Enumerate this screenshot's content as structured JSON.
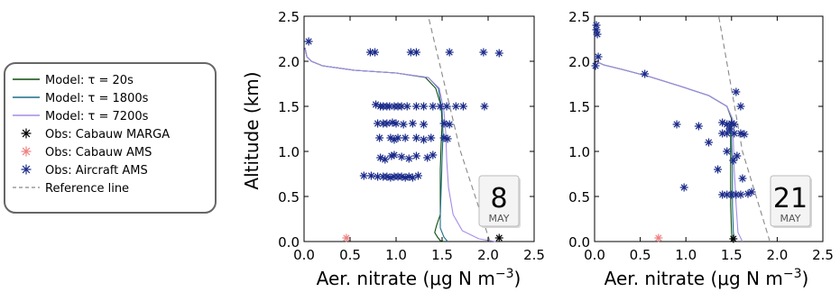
{
  "legend": {
    "entries": [
      {
        "label": "Model: τ  = 20s",
        "color": "#0b4d0b",
        "kind": "line"
      },
      {
        "label": "Model: τ  = 1800s",
        "color": "#1f6e86",
        "kind": "line"
      },
      {
        "label": "Model: τ  = 7200s",
        "color": "#a58be6",
        "kind": "line"
      },
      {
        "label": "Obs: Cabauw MARGA",
        "color": "#000000",
        "kind": "star"
      },
      {
        "label": "Obs: Cabauw AMS",
        "color": "#f08080",
        "kind": "star"
      },
      {
        "label": "Obs: Aircraft AMS",
        "color": "#1a2a8a",
        "kind": "star"
      },
      {
        "label": "Reference line",
        "color": "#888888",
        "kind": "dash"
      }
    ]
  },
  "chart_data": [
    {
      "type": "line",
      "xlabel": "Aer. nitrate (μg N m⁻³)",
      "ylabel": "Altitude (km)",
      "xlim": [
        0.0,
        2.5
      ],
      "ylim": [
        0.0,
        2.5
      ],
      "xticks": [
        "0.0",
        "0.5",
        "1.0",
        "1.5",
        "2.0",
        "2.5"
      ],
      "yticks": [
        "0.0",
        "0.5",
        "1.0",
        "1.5",
        "2.0",
        "2.5"
      ],
      "calendar": {
        "day": "8",
        "month": "MAY"
      },
      "series": [
        {
          "name": "Model: τ  = 20s",
          "color": "#0b4d0b",
          "points": [
            [
              1.52,
              0.0
            ],
            [
              1.48,
              0.01
            ],
            [
              1.45,
              0.05
            ],
            [
              1.42,
              0.1
            ],
            [
              1.44,
              0.18
            ],
            [
              1.48,
              0.3
            ],
            [
              1.48,
              0.5
            ],
            [
              1.48,
              0.8
            ],
            [
              1.49,
              1.1
            ],
            [
              1.5,
              1.3
            ],
            [
              1.49,
              1.5
            ],
            [
              1.43,
              1.7
            ],
            [
              1.32,
              1.82
            ],
            [
              1.0,
              1.87
            ],
            [
              0.55,
              1.9
            ],
            [
              0.2,
              1.95
            ],
            [
              0.08,
              2.0
            ],
            [
              0.03,
              2.05
            ],
            [
              0.01,
              2.15
            ]
          ]
        },
        {
          "name": "Model: τ  = 1800s",
          "color": "#1f6e86",
          "points": [
            [
              1.56,
              0.0
            ],
            [
              1.52,
              0.05
            ],
            [
              1.48,
              0.15
            ],
            [
              1.48,
              0.3
            ],
            [
              1.49,
              0.6
            ],
            [
              1.5,
              0.9
            ],
            [
              1.51,
              1.2
            ],
            [
              1.5,
              1.45
            ],
            [
              1.46,
              1.7
            ],
            [
              1.35,
              1.82
            ],
            [
              1.0,
              1.87
            ],
            [
              0.55,
              1.9
            ],
            [
              0.2,
              1.95
            ],
            [
              0.08,
              2.0
            ],
            [
              0.03,
              2.05
            ],
            [
              0.01,
              2.15
            ]
          ]
        },
        {
          "name": "Model: τ  = 7200s",
          "color": "#a58be6",
          "points": [
            [
              2.08,
              0.0
            ],
            [
              1.9,
              0.03
            ],
            [
              1.72,
              0.12
            ],
            [
              1.62,
              0.3
            ],
            [
              1.57,
              0.6
            ],
            [
              1.55,
              0.9
            ],
            [
              1.54,
              1.2
            ],
            [
              1.52,
              1.45
            ],
            [
              1.47,
              1.7
            ],
            [
              1.35,
              1.82
            ],
            [
              1.0,
              1.87
            ],
            [
              0.55,
              1.9
            ],
            [
              0.2,
              1.95
            ],
            [
              0.08,
              2.0
            ],
            [
              0.03,
              2.05
            ],
            [
              0.01,
              2.15
            ]
          ]
        },
        {
          "name": "Reference line",
          "color": "#888888",
          "dashed": true,
          "points": [
            [
              2.02,
              0.0
            ],
            [
              1.7,
              1.0
            ],
            [
              1.35,
              2.5
            ]
          ]
        }
      ],
      "observations": [
        {
          "name": "Obs: Cabauw MARGA",
          "color": "#000000",
          "points": [
            [
              2.12,
              0.04
            ]
          ]
        },
        {
          "name": "Obs: Cabauw AMS",
          "color": "#f08080",
          "points": [
            [
              0.46,
              0.04
            ]
          ]
        },
        {
          "name": "Obs: Aircraft AMS",
          "color": "#1a2a8a",
          "points": [
            [
              0.05,
              2.22
            ],
            [
              0.72,
              2.1
            ],
            [
              0.77,
              2.1
            ],
            [
              1.16,
              2.1
            ],
            [
              1.22,
              2.1
            ],
            [
              1.58,
              2.1
            ],
            [
              1.95,
              2.1
            ],
            [
              2.12,
              2.09
            ],
            [
              0.78,
              1.52
            ],
            [
              0.83,
              1.5
            ],
            [
              0.86,
              1.5
            ],
            [
              0.9,
              1.5
            ],
            [
              0.93,
              1.5
            ],
            [
              0.98,
              1.5
            ],
            [
              1.02,
              1.5
            ],
            [
              1.06,
              1.5
            ],
            [
              1.12,
              1.5
            ],
            [
              1.22,
              1.5
            ],
            [
              1.3,
              1.5
            ],
            [
              1.4,
              1.5
            ],
            [
              1.48,
              1.5
            ],
            [
              1.55,
              1.5
            ],
            [
              1.65,
              1.5
            ],
            [
              1.73,
              1.5
            ],
            [
              1.96,
              1.5
            ],
            [
              0.8,
              1.31
            ],
            [
              0.86,
              1.31
            ],
            [
              0.9,
              1.31
            ],
            [
              0.96,
              1.32
            ],
            [
              1.0,
              1.31
            ],
            [
              1.08,
              1.3
            ],
            [
              1.18,
              1.31
            ],
            [
              1.3,
              1.3
            ],
            [
              1.52,
              1.31
            ],
            [
              1.58,
              1.3
            ],
            [
              0.82,
              1.15
            ],
            [
              0.94,
              1.15
            ],
            [
              0.98,
              1.13
            ],
            [
              1.02,
              1.15
            ],
            [
              1.1,
              1.15
            ],
            [
              1.22,
              1.15
            ],
            [
              1.3,
              1.13
            ],
            [
              1.38,
              1.15
            ],
            [
              1.52,
              1.15
            ],
            [
              1.56,
              1.14
            ],
            [
              0.83,
              0.93
            ],
            [
              0.88,
              0.91
            ],
            [
              0.95,
              0.95
            ],
            [
              0.98,
              0.96
            ],
            [
              1.06,
              0.94
            ],
            [
              1.14,
              0.92
            ],
            [
              1.22,
              0.95
            ],
            [
              1.34,
              0.93
            ],
            [
              1.4,
              0.96
            ],
            [
              0.65,
              0.73
            ],
            [
              0.73,
              0.73
            ],
            [
              0.8,
              0.72
            ],
            [
              0.86,
              0.72
            ],
            [
              0.9,
              0.72
            ],
            [
              0.94,
              0.71
            ],
            [
              0.98,
              0.72
            ],
            [
              1.02,
              0.72
            ],
            [
              1.06,
              0.72
            ],
            [
              1.1,
              0.71
            ],
            [
              1.14,
              0.72
            ],
            [
              1.18,
              0.71
            ],
            [
              1.24,
              0.73
            ]
          ]
        }
      ]
    },
    {
      "type": "line",
      "xlabel": "Aer. nitrate (μg N m⁻³)",
      "ylabel": "",
      "xlim": [
        0.0,
        2.5
      ],
      "ylim": [
        0.0,
        2.5
      ],
      "xticks": [
        "0.0",
        "0.5",
        "1.0",
        "1.5",
        "2.0",
        "2.5"
      ],
      "yticks": [
        "0.0",
        "0.5",
        "1.0",
        "1.5",
        "2.0",
        "2.5"
      ],
      "calendar": {
        "day": "21",
        "month": "MAY"
      },
      "series": [
        {
          "name": "Model: τ  = 20s",
          "color": "#0b4d0b",
          "points": [
            [
              1.51,
              0.0
            ],
            [
              1.5,
              0.1
            ],
            [
              1.49,
              0.4
            ],
            [
              1.49,
              0.8
            ],
            [
              1.49,
              1.1
            ],
            [
              1.49,
              1.3
            ],
            [
              1.5,
              1.36
            ],
            [
              1.45,
              1.5
            ],
            [
              1.25,
              1.62
            ],
            [
              0.95,
              1.72
            ],
            [
              0.6,
              1.83
            ],
            [
              0.3,
              1.91
            ],
            [
              0.1,
              1.96
            ],
            [
              0.01,
              2.0
            ]
          ]
        },
        {
          "name": "Model: τ  = 1800s",
          "color": "#1f6e86",
          "points": [
            [
              1.54,
              0.0
            ],
            [
              1.52,
              0.1
            ],
            [
              1.51,
              0.4
            ],
            [
              1.51,
              0.8
            ],
            [
              1.5,
              1.1
            ],
            [
              1.5,
              1.3
            ],
            [
              1.51,
              1.36
            ],
            [
              1.45,
              1.5
            ],
            [
              1.25,
              1.62
            ],
            [
              0.95,
              1.72
            ],
            [
              0.6,
              1.83
            ],
            [
              0.3,
              1.91
            ],
            [
              0.1,
              1.96
            ],
            [
              0.01,
              2.0
            ]
          ]
        },
        {
          "name": "Model: τ  = 7200s",
          "color": "#a58be6",
          "points": [
            [
              1.62,
              0.0
            ],
            [
              1.57,
              0.1
            ],
            [
              1.55,
              0.4
            ],
            [
              1.53,
              0.8
            ],
            [
              1.52,
              1.1
            ],
            [
              1.51,
              1.3
            ],
            [
              1.51,
              1.36
            ],
            [
              1.45,
              1.5
            ],
            [
              1.25,
              1.62
            ],
            [
              0.95,
              1.72
            ],
            [
              0.6,
              1.83
            ],
            [
              0.3,
              1.91
            ],
            [
              0.1,
              1.96
            ],
            [
              0.01,
              2.0
            ]
          ]
        },
        {
          "name": "Reference line",
          "color": "#888888",
          "dashed": true,
          "points": [
            [
              1.92,
              0.0
            ],
            [
              1.62,
              1.0
            ],
            [
              1.36,
              2.5
            ]
          ]
        }
      ],
      "observations": [
        {
          "name": "Obs: Cabauw MARGA",
          "color": "#000000",
          "points": [
            [
              1.52,
              0.03
            ]
          ]
        },
        {
          "name": "Obs: Cabauw AMS",
          "color": "#f08080",
          "points": [
            [
              0.7,
              0.04
            ]
          ]
        },
        {
          "name": "Obs: Aircraft AMS",
          "color": "#1a2a8a",
          "points": [
            [
              0.02,
              2.4
            ],
            [
              0.02,
              2.35
            ],
            [
              0.03,
              2.3
            ],
            [
              0.04,
              2.05
            ],
            [
              0.01,
              1.95
            ],
            [
              0.55,
              1.86
            ],
            [
              1.55,
              1.66
            ],
            [
              1.6,
              1.5
            ],
            [
              0.9,
              1.3
            ],
            [
              1.14,
              1.28
            ],
            [
              1.4,
              1.32
            ],
            [
              1.45,
              1.3
            ],
            [
              1.5,
              1.31
            ],
            [
              1.53,
              1.3
            ],
            [
              1.48,
              1.25
            ],
            [
              1.53,
              1.2
            ],
            [
              1.45,
              1.2
            ],
            [
              1.4,
              1.2
            ],
            [
              1.6,
              1.2
            ],
            [
              1.64,
              1.19
            ],
            [
              1.25,
              1.1
            ],
            [
              1.45,
              1.0
            ],
            [
              1.56,
              0.95
            ],
            [
              1.52,
              0.9
            ],
            [
              1.35,
              0.8
            ],
            [
              1.62,
              0.7
            ],
            [
              0.98,
              0.6
            ],
            [
              1.4,
              0.52
            ],
            [
              1.45,
              0.52
            ],
            [
              1.5,
              0.52
            ],
            [
              1.55,
              0.52
            ],
            [
              1.6,
              0.52
            ],
            [
              1.68,
              0.53
            ],
            [
              1.72,
              0.55
            ]
          ]
        }
      ]
    }
  ]
}
